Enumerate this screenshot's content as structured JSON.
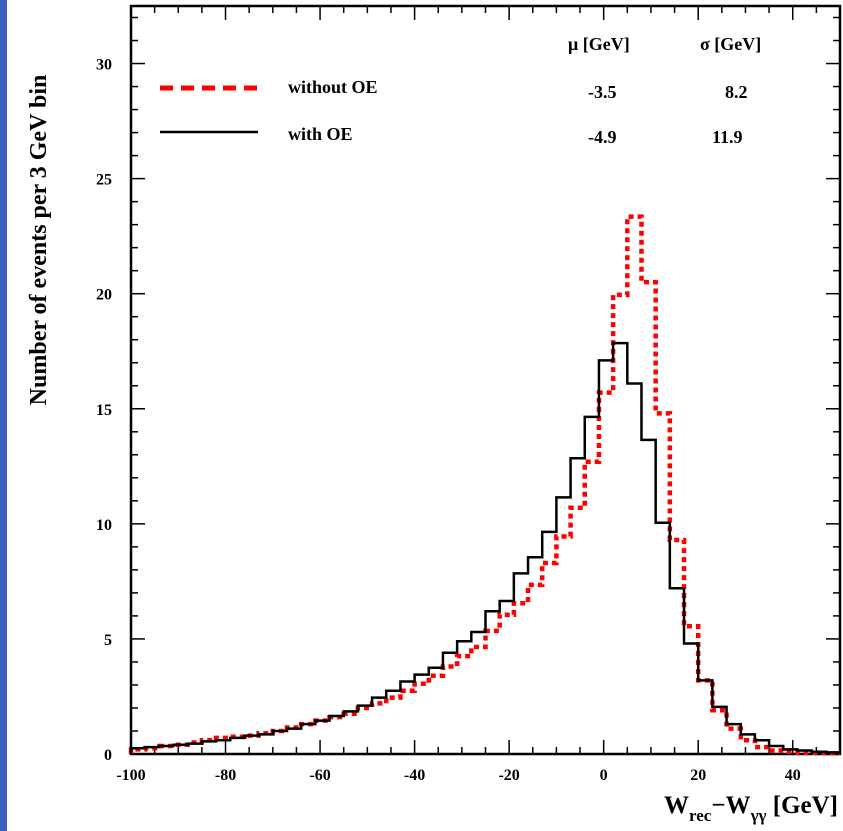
{
  "chart_data": {
    "type": "line",
    "title": "",
    "xlabel": "W_rec−W_γγ [GeV]",
    "xlabel_parts": {
      "w1": "W",
      "sub1": "rec",
      "dash": "−",
      "w2": "W",
      "sub2": "γγ",
      "unit": " [GeV]"
    },
    "ylabel": "Number of events per 3 GeV bin",
    "xlim": [
      -100,
      50
    ],
    "ylim": [
      0,
      32.5
    ],
    "x_ticks": [
      -100,
      -80,
      -60,
      -40,
      -20,
      0,
      20,
      40
    ],
    "x_tick_labels": [
      "-100",
      "-80",
      "-60",
      "-40",
      "-20",
      "0",
      "20",
      "40"
    ],
    "y_ticks": [
      0,
      5,
      10,
      15,
      20,
      25,
      30
    ],
    "y_tick_labels": [
      "0",
      "5",
      "10",
      "15",
      "20",
      "25",
      "30"
    ],
    "bin_edges": [
      -100,
      -97,
      -94,
      -91,
      -88,
      -85,
      -82,
      -79,
      -76,
      -73,
      -70,
      -67,
      -64,
      -61,
      -58,
      -55,
      -52,
      -49,
      -46,
      -43,
      -40,
      -37,
      -34,
      -31,
      -28,
      -25,
      -22,
      -19,
      -16,
      -13,
      -10,
      -7,
      -4,
      -1,
      2,
      5,
      8,
      11,
      14,
      17,
      20,
      23,
      26,
      29,
      32,
      35,
      38,
      41,
      44,
      47,
      50
    ],
    "series": [
      {
        "name": "without OE",
        "color": "#ff0000",
        "style": "dashed",
        "values": [
          0.2,
          0.25,
          0.35,
          0.4,
          0.5,
          0.6,
          0.7,
          0.75,
          0.8,
          0.9,
          1.0,
          1.15,
          1.3,
          1.45,
          1.6,
          1.75,
          2.0,
          2.2,
          2.45,
          2.75,
          3.05,
          3.4,
          3.8,
          4.25,
          4.65,
          5.35,
          6.05,
          6.55,
          7.35,
          8.3,
          9.45,
          10.7,
          12.7,
          15.7,
          19.95,
          23.35,
          20.5,
          14.8,
          9.3,
          5.55,
          3.2,
          1.9,
          1.1,
          0.6,
          0.3,
          0.15,
          0.1,
          0.05,
          0.05,
          0.03
        ]
      },
      {
        "name": "with OE",
        "color": "#000000",
        "style": "solid",
        "values": [
          0.25,
          0.3,
          0.35,
          0.4,
          0.45,
          0.55,
          0.6,
          0.7,
          0.8,
          0.85,
          1.0,
          1.1,
          1.3,
          1.45,
          1.65,
          1.85,
          2.1,
          2.45,
          2.75,
          3.15,
          3.45,
          3.75,
          4.4,
          4.9,
          5.3,
          6.2,
          6.65,
          7.85,
          8.55,
          9.65,
          11.15,
          12.85,
          14.65,
          17.1,
          17.85,
          16.1,
          13.65,
          10.05,
          7.2,
          4.8,
          3.2,
          2.05,
          1.3,
          0.85,
          0.6,
          0.35,
          0.2,
          0.15,
          0.1,
          0.07
        ]
      }
    ],
    "legend": {
      "placement": "top-left",
      "entries": [
        {
          "label": "without OE",
          "mu": "-3.5",
          "sigma": "8.2"
        },
        {
          "label": "with OE",
          "mu": "-4.9",
          "sigma": "11.9"
        }
      ],
      "mu_header": "μ [GeV]",
      "sigma_header": "σ [GeV]"
    }
  },
  "frame": {
    "left_bar_color": "#3a5fbd"
  }
}
